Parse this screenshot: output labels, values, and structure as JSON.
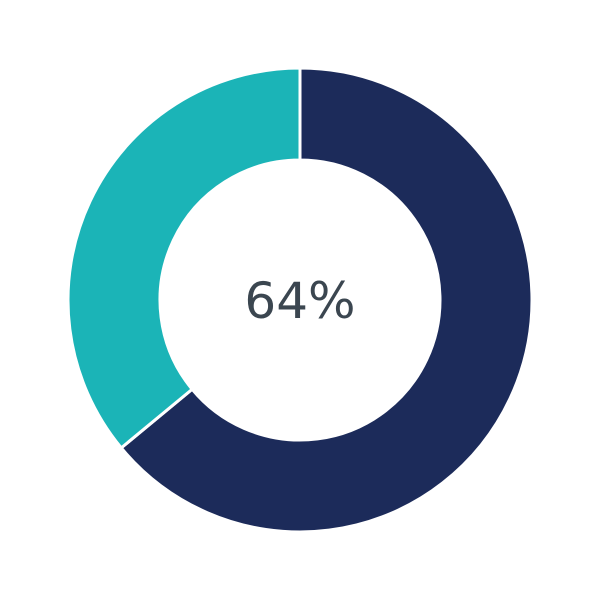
{
  "chart_data": {
    "type": "pie",
    "variant": "donut",
    "categories": [
      "",
      ""
    ],
    "values": [
      64,
      36
    ],
    "colors": [
      "#1c2b5a",
      "#1bb4b7"
    ],
    "center_label": "64%",
    "start_angle": "top",
    "direction": "clockwise",
    "legend": "none"
  }
}
